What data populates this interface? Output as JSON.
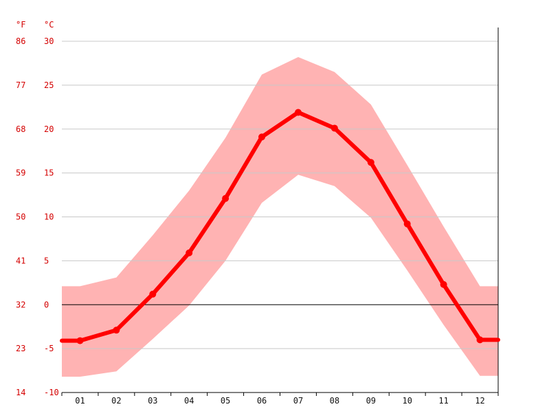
{
  "chart_data": {
    "type": "line",
    "title": "",
    "xlabel": "",
    "ylabel": "",
    "unit_labels": {
      "fahrenheit": "°F",
      "celsius": "°C"
    },
    "categories": [
      "01",
      "02",
      "03",
      "04",
      "05",
      "06",
      "07",
      "08",
      "09",
      "10",
      "11",
      "12"
    ],
    "y_ticks": [
      {
        "c": "30",
        "f": "86"
      },
      {
        "c": "25",
        "f": "77"
      },
      {
        "c": "20",
        "f": "68"
      },
      {
        "c": "15",
        "f": "59"
      },
      {
        "c": "10",
        "f": "50"
      },
      {
        "c": "5",
        "f": "41"
      },
      {
        "c": "0",
        "f": "32"
      },
      {
        "c": "-5",
        "f": "23"
      },
      {
        "c": "-10",
        "f": "14"
      }
    ],
    "ylim": [
      -10,
      30
    ],
    "grid": true,
    "series": [
      {
        "values": [
          -4.1,
          -2.9,
          1.2,
          5.9,
          12.1,
          19.1,
          21.9,
          20.1,
          16.2,
          9.2,
          2.3,
          -4.0
        ]
      }
    ],
    "band": {
      "upper": [
        2.1,
        3.1,
        7.9,
        13.0,
        19.0,
        26.2,
        28.2,
        26.5,
        22.8,
        15.9,
        8.9,
        2.1
      ],
      "lower": [
        -8.2,
        -7.6,
        -3.9,
        -0.1,
        5.0,
        11.6,
        14.8,
        13.5,
        9.9,
        3.9,
        -2.3,
        -8.1
      ]
    },
    "colors": {
      "line": "#ff0000",
      "band": "#ffb3b3",
      "grid": "#c8c8c8",
      "axis": "#000000",
      "tick_text": "#d40000",
      "category_text": "#111111"
    }
  }
}
